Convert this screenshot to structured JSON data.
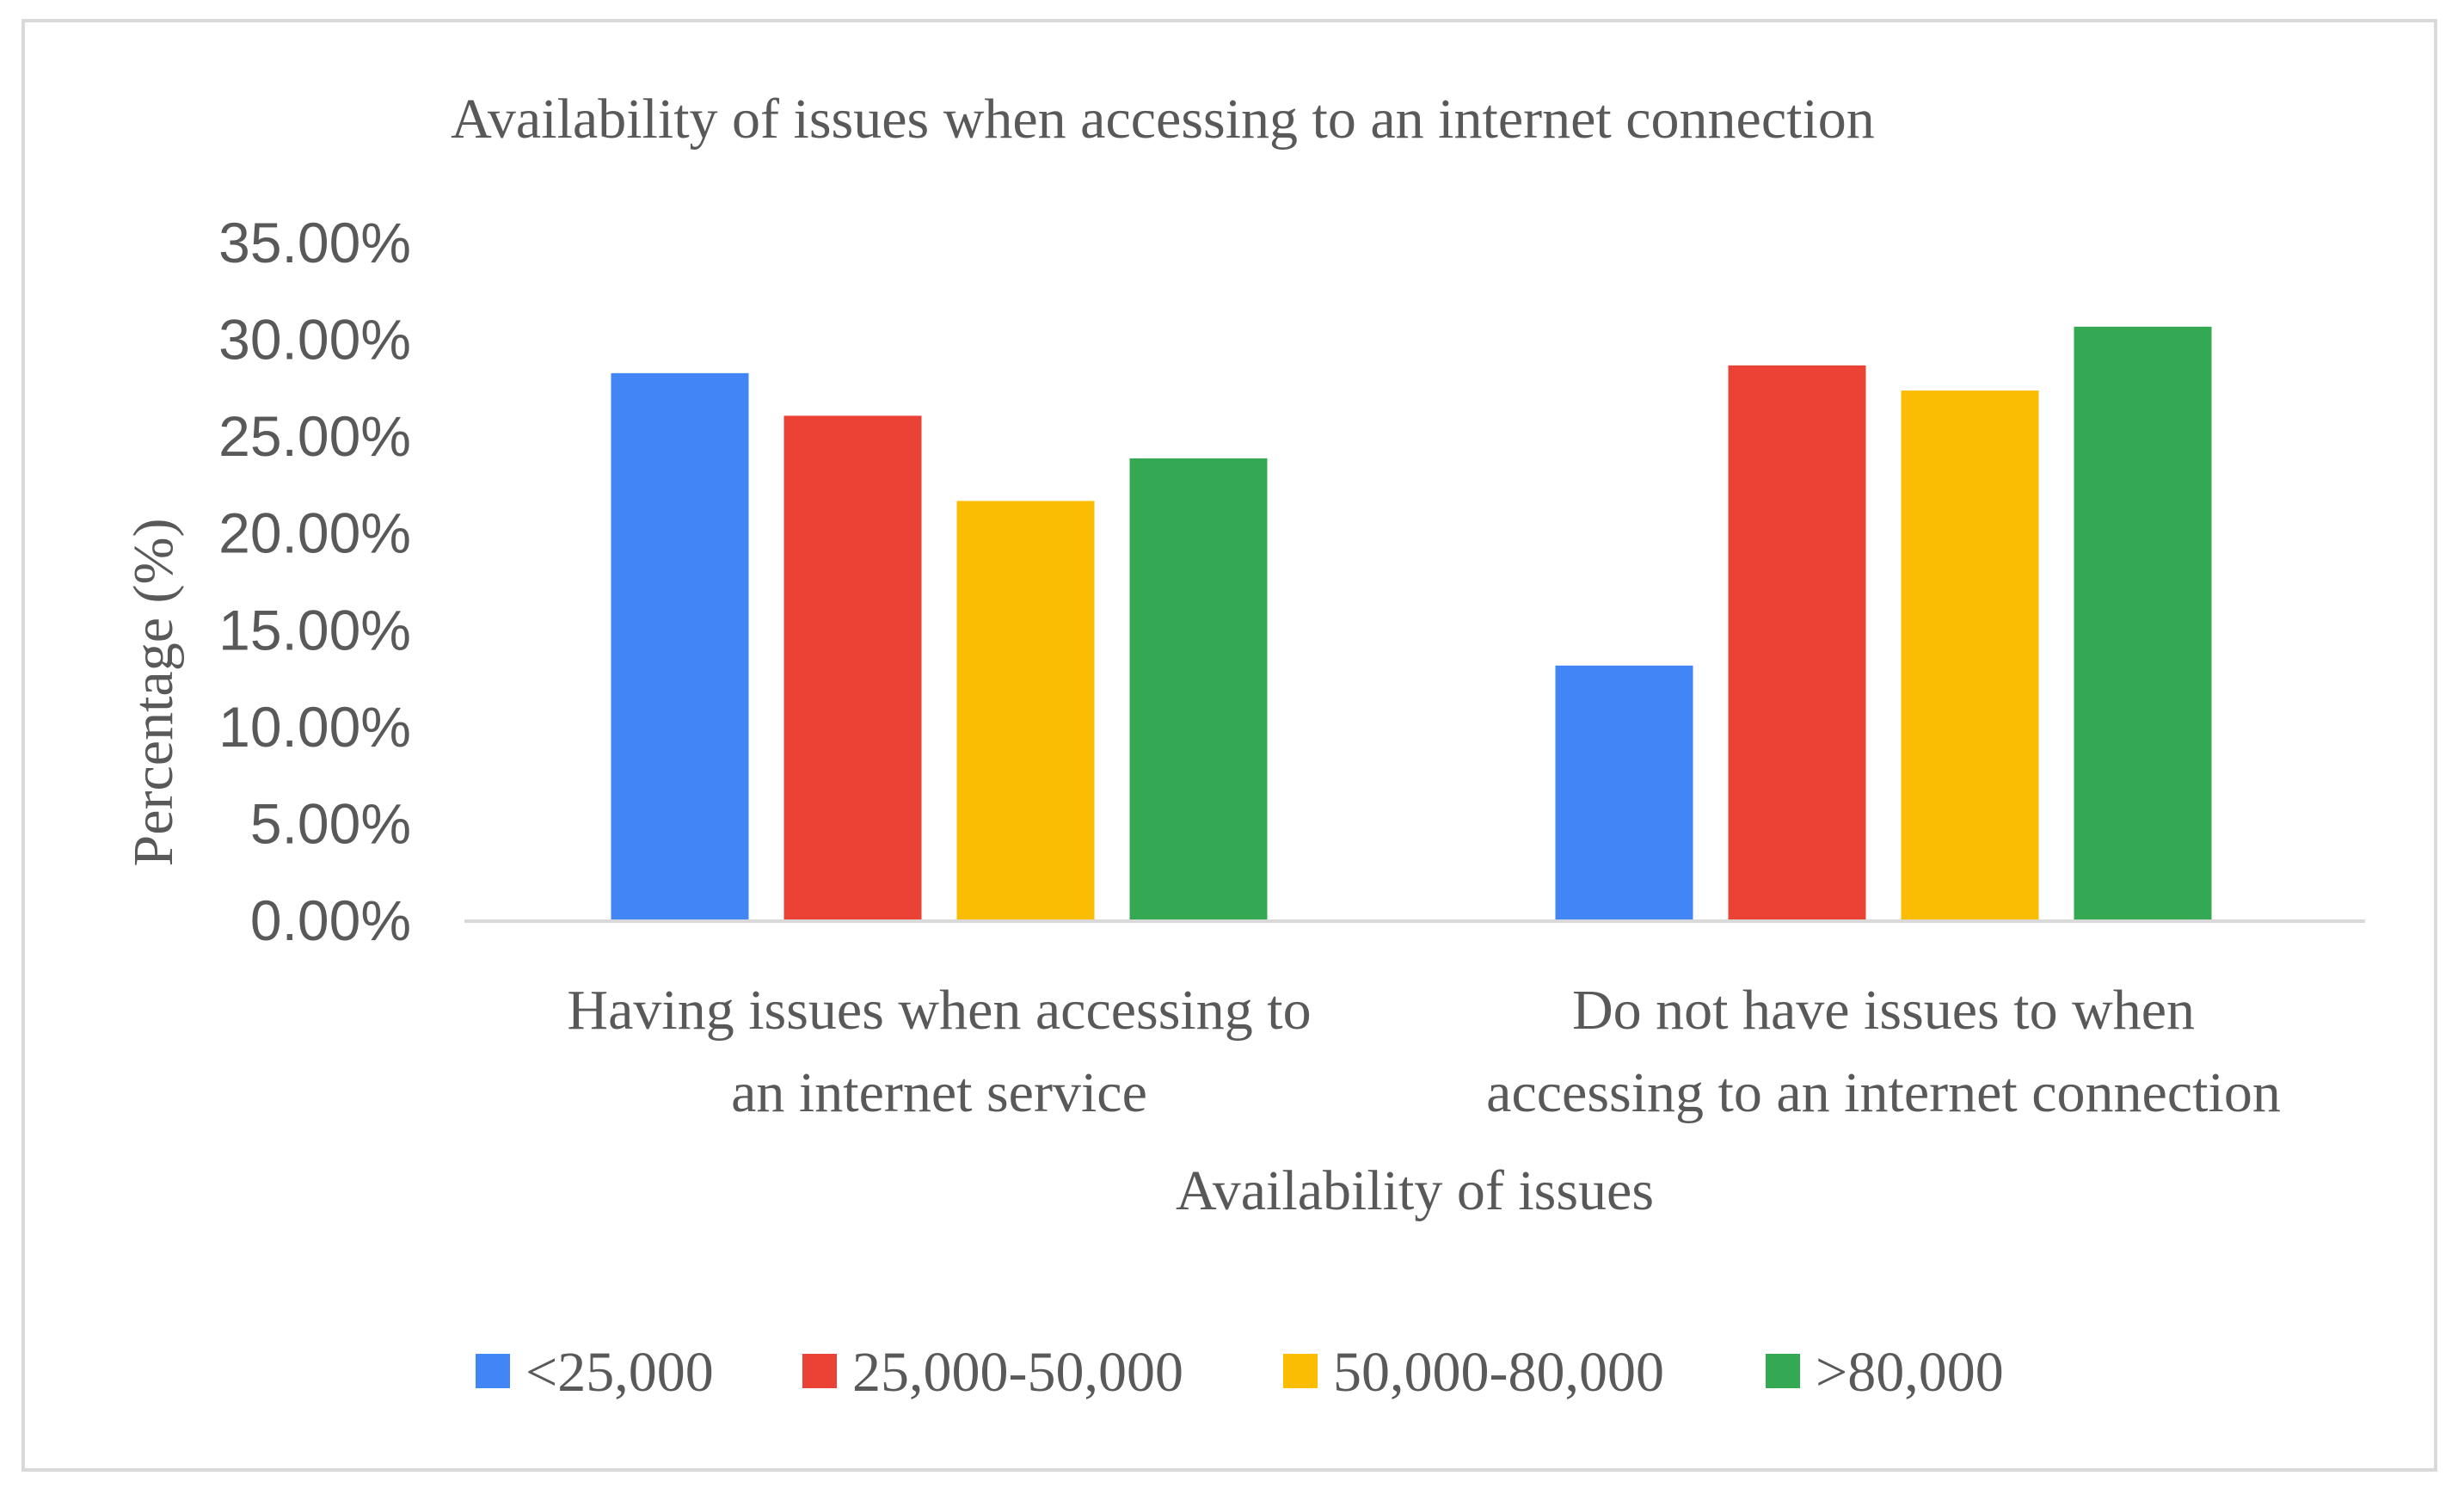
{
  "chart_data": {
    "type": "bar",
    "title": "Availability of issues when accessing to an internet connection",
    "xlabel": "Availability of issues",
    "ylabel": "Percentage (%)",
    "categories": [
      [
        "Having issues when accessing to",
        "an internet service"
      ],
      [
        "Do not have issues to when",
        "accessing to an internet connection"
      ]
    ],
    "series": [
      {
        "name": "<25,000",
        "color": "#4285f4",
        "values": [
          28.3,
          13.2
        ]
      },
      {
        "name": "25,000-50,000",
        "color": "#ea4335",
        "values": [
          26.1,
          28.7
        ]
      },
      {
        "name": "50,000-80,000",
        "color": "#fbbc04",
        "values": [
          21.7,
          27.4
        ]
      },
      {
        "name": ">80,000",
        "color": "#34a853",
        "values": [
          23.9,
          30.7
        ]
      }
    ],
    "yticks": [
      "0.00%",
      "5.00%",
      "10.00%",
      "15.00%",
      "20.00%",
      "25.00%",
      "30.00%",
      "35.00%"
    ],
    "ylim": [
      0,
      35
    ],
    "grid": false,
    "legend_position": "bottom"
  }
}
